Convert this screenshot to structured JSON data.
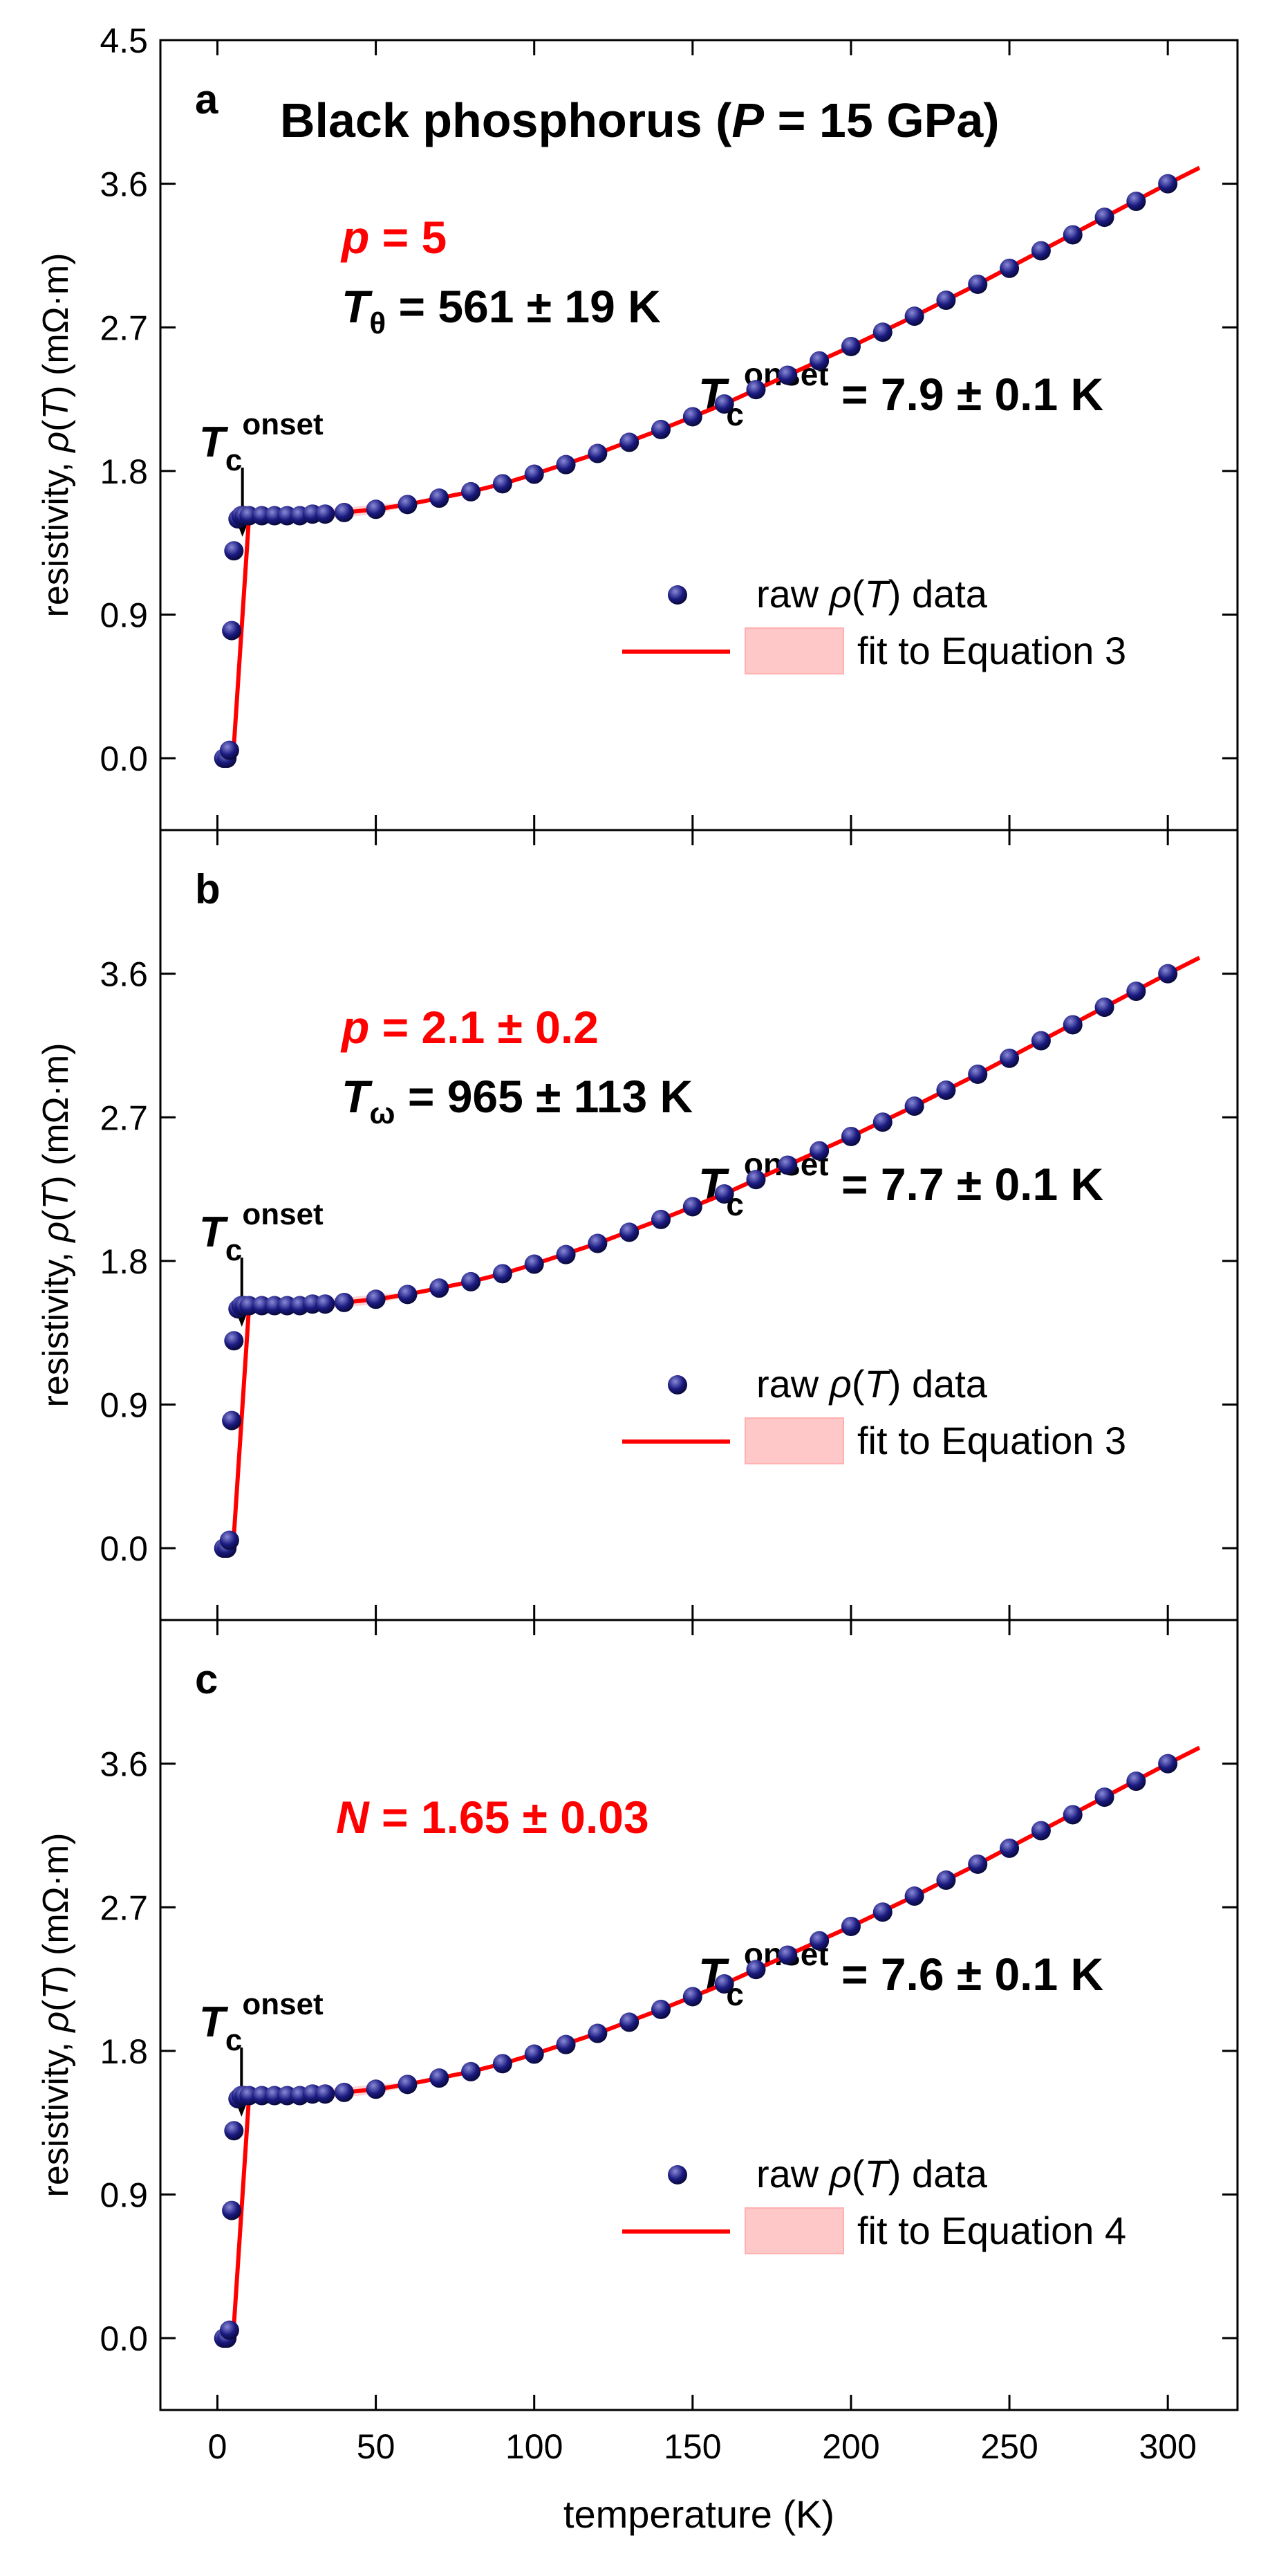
{
  "figure": {
    "xlabel": "temperature (K)",
    "xlim": [
      -18,
      322
    ],
    "xticks": [
      0,
      50,
      100,
      150,
      200,
      250,
      300
    ],
    "ylim": [
      -0.45,
      4.5
    ],
    "yticks": [
      0.0,
      0.9,
      1.8,
      2.7,
      3.6,
      4.5
    ],
    "ylabel_parts": [
      "resistivity, ",
      "ρ",
      "(",
      "T",
      ") (mΩ·m)"
    ],
    "title_parts": [
      "Black phosphorus (",
      "P",
      " = 15 GPa)"
    ],
    "tc_label": {
      "T": "T",
      "sub": "c",
      "sup": "onset"
    },
    "colors": {
      "fit": "#ff0000",
      "band": "#ffc8c8",
      "marker": "#1a1a80",
      "marker_highlight": "#8a8ad8",
      "axis": "#000000"
    }
  },
  "chart_data": [
    {
      "panel": "a",
      "type": "scatter",
      "params": [
        {
          "var": "p",
          "sub": "",
          "text": " = 5",
          "color": "#ff0000"
        },
        {
          "var": "T",
          "sub": "θ",
          "text": " = 561 ± 19 K",
          "color": "#000000"
        }
      ],
      "tc_value": " = 7.9 ± 0.1 K",
      "tc_onset": 7.9,
      "plateau": 1.52,
      "legend": {
        "data_parts": [
          "raw ",
          "ρ",
          "(",
          "T",
          ") data"
        ],
        "fit_label": "fit to Equation 3"
      },
      "series": [
        {
          "name": "raw ρ(T) data",
          "x": [
            2,
            3,
            3.8,
            4.5,
            5.2,
            6.5,
            7.5,
            8.5,
            10,
            14,
            18,
            22,
            26,
            30,
            34,
            40,
            50,
            60,
            70,
            80,
            90,
            100,
            110,
            120,
            130,
            140,
            150,
            160,
            170,
            180,
            190,
            200,
            210,
            220,
            230,
            240,
            250,
            260,
            270,
            280,
            290,
            300
          ],
          "y": [
            0.0,
            0.0,
            0.05,
            0.8,
            1.3,
            1.5,
            1.52,
            1.52,
            1.52,
            1.52,
            1.52,
            1.52,
            1.52,
            1.53,
            1.53,
            1.54,
            1.56,
            1.59,
            1.63,
            1.67,
            1.72,
            1.78,
            1.84,
            1.91,
            1.98,
            2.06,
            2.14,
            2.22,
            2.31,
            2.4,
            2.49,
            2.58,
            2.67,
            2.77,
            2.87,
            2.97,
            3.07,
            3.18,
            3.28,
            3.39,
            3.49,
            3.6
          ]
        },
        {
          "name": "fit to Equation 3",
          "x": [
            0,
            5,
            10,
            20,
            30,
            40,
            50,
            60,
            70,
            80,
            90,
            100,
            120,
            140,
            160,
            180,
            200,
            220,
            240,
            260,
            280,
            300,
            310
          ],
          "y": [
            0.0,
            0.02,
            1.52,
            1.52,
            1.53,
            1.54,
            1.56,
            1.59,
            1.63,
            1.67,
            1.72,
            1.78,
            1.91,
            2.06,
            2.22,
            2.4,
            2.58,
            2.77,
            2.97,
            3.18,
            3.39,
            3.6,
            3.7
          ]
        }
      ]
    },
    {
      "panel": "b",
      "type": "scatter",
      "params": [
        {
          "var": "p",
          "sub": "",
          "text": " = 2.1 ± 0.2",
          "color": "#ff0000"
        },
        {
          "var": "T",
          "sub": "ω",
          "text": " = 965 ± 113 K",
          "color": "#000000"
        }
      ],
      "tc_value": " = 7.7 ± 0.1 K",
      "tc_onset": 7.7,
      "plateau": 1.52,
      "legend": {
        "data_parts": [
          "raw ",
          "ρ",
          "(",
          "T",
          ") data"
        ],
        "fit_label": "fit to Equation 3"
      },
      "series": [
        {
          "name": "raw ρ(T) data",
          "x": [
            2,
            3,
            3.8,
            4.5,
            5.2,
            6.5,
            7.5,
            8.5,
            10,
            14,
            18,
            22,
            26,
            30,
            34,
            40,
            50,
            60,
            70,
            80,
            90,
            100,
            110,
            120,
            130,
            140,
            150,
            160,
            170,
            180,
            190,
            200,
            210,
            220,
            230,
            240,
            250,
            260,
            270,
            280,
            290,
            300
          ],
          "y": [
            0.0,
            0.0,
            0.05,
            0.8,
            1.3,
            1.5,
            1.52,
            1.52,
            1.52,
            1.52,
            1.52,
            1.52,
            1.52,
            1.53,
            1.53,
            1.54,
            1.56,
            1.59,
            1.63,
            1.67,
            1.72,
            1.78,
            1.84,
            1.91,
            1.98,
            2.06,
            2.14,
            2.22,
            2.31,
            2.4,
            2.49,
            2.58,
            2.67,
            2.77,
            2.87,
            2.97,
            3.07,
            3.18,
            3.28,
            3.39,
            3.49,
            3.6
          ]
        },
        {
          "name": "fit to Equation 3",
          "x": [
            0,
            5,
            10,
            20,
            30,
            40,
            50,
            60,
            70,
            80,
            90,
            100,
            120,
            140,
            160,
            180,
            200,
            220,
            240,
            260,
            280,
            300,
            310
          ],
          "y": [
            0.0,
            0.02,
            1.52,
            1.52,
            1.53,
            1.54,
            1.56,
            1.59,
            1.63,
            1.67,
            1.72,
            1.78,
            1.91,
            2.06,
            2.22,
            2.4,
            2.58,
            2.77,
            2.97,
            3.18,
            3.39,
            3.6,
            3.7
          ]
        }
      ]
    },
    {
      "panel": "c",
      "type": "scatter",
      "params": [
        {
          "var": "N",
          "sub": "",
          "text": " = 1.65 ± 0.03",
          "color": "#ff0000"
        }
      ],
      "tc_value": " = 7.6 ± 0.1 K",
      "tc_onset": 7.6,
      "plateau": 1.52,
      "legend": {
        "data_parts": [
          "raw ",
          "ρ",
          "(",
          "T",
          ") data"
        ],
        "fit_label": "fit to Equation 4"
      },
      "series": [
        {
          "name": "raw ρ(T) data",
          "x": [
            2,
            3,
            3.8,
            4.5,
            5.2,
            6.5,
            7.5,
            8.5,
            10,
            14,
            18,
            22,
            26,
            30,
            34,
            40,
            50,
            60,
            70,
            80,
            90,
            100,
            110,
            120,
            130,
            140,
            150,
            160,
            170,
            180,
            190,
            200,
            210,
            220,
            230,
            240,
            250,
            260,
            270,
            280,
            290,
            300
          ],
          "y": [
            0.0,
            0.0,
            0.05,
            0.8,
            1.3,
            1.5,
            1.52,
            1.52,
            1.52,
            1.52,
            1.52,
            1.52,
            1.52,
            1.53,
            1.53,
            1.54,
            1.56,
            1.59,
            1.63,
            1.67,
            1.72,
            1.78,
            1.84,
            1.91,
            1.98,
            2.06,
            2.14,
            2.22,
            2.31,
            2.4,
            2.49,
            2.58,
            2.67,
            2.77,
            2.87,
            2.97,
            3.07,
            3.18,
            3.28,
            3.39,
            3.49,
            3.6
          ]
        },
        {
          "name": "fit to Equation 4",
          "x": [
            0,
            5,
            10,
            20,
            30,
            40,
            50,
            60,
            70,
            80,
            90,
            100,
            120,
            140,
            160,
            180,
            200,
            220,
            240,
            260,
            280,
            300,
            310
          ],
          "y": [
            0.0,
            0.02,
            1.52,
            1.52,
            1.53,
            1.54,
            1.56,
            1.59,
            1.63,
            1.67,
            1.72,
            1.78,
            1.91,
            2.06,
            2.22,
            2.4,
            2.58,
            2.77,
            2.97,
            3.18,
            3.39,
            3.6,
            3.7
          ]
        }
      ]
    }
  ]
}
